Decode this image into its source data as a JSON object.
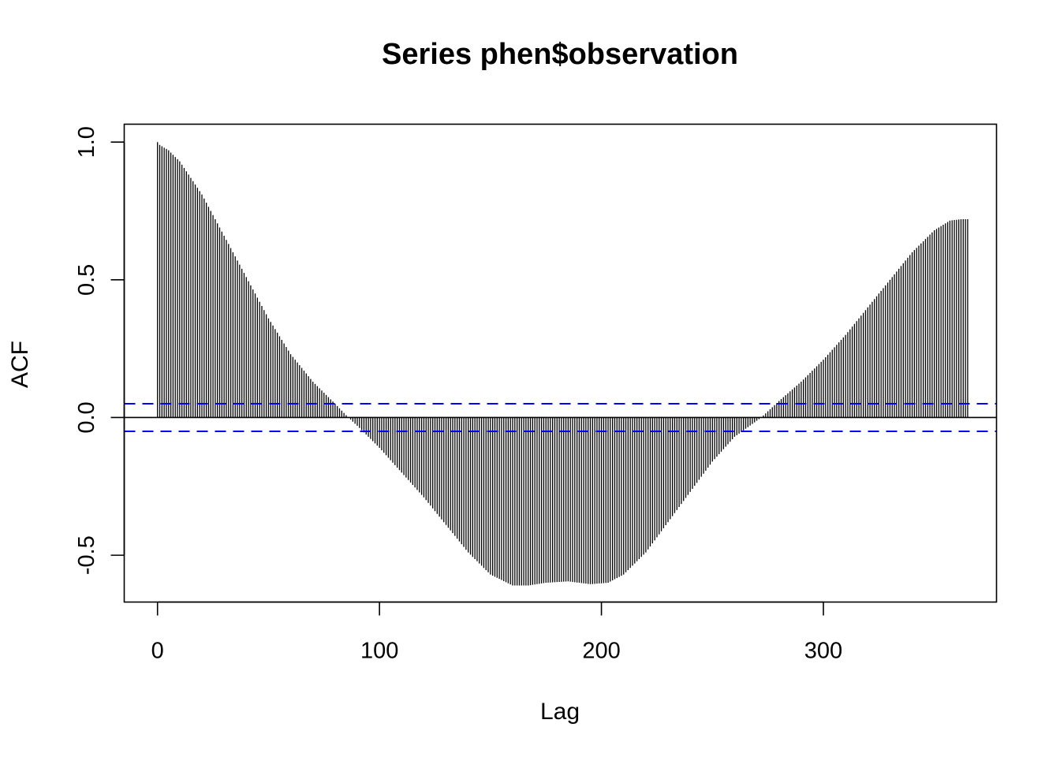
{
  "chart_data": {
    "type": "bar",
    "title": "Series  phen$observation",
    "xlabel": "Lag",
    "ylabel": "ACF",
    "xlim": [
      -15,
      378
    ],
    "ylim": [
      -0.67,
      1.065
    ],
    "x_ticks": [
      0,
      100,
      200,
      300
    ],
    "y_ticks": [
      -0.5,
      0.0,
      0.5,
      1.0
    ],
    "y_tick_labels": [
      "-0.5",
      "0.0",
      "0.5",
      "1.0"
    ],
    "confidence_band": {
      "upper": 0.05,
      "lower": -0.05,
      "color": "#0000ff",
      "style": "dashed"
    },
    "zero_line": true,
    "bar_color": "#000000",
    "lags": {
      "start": 0,
      "end": 365,
      "step": 1
    },
    "acf_profile": {
      "lag": [
        0,
        1,
        5,
        10,
        20,
        30,
        40,
        50,
        60,
        70,
        80,
        86,
        90,
        100,
        110,
        120,
        130,
        140,
        150,
        160,
        167,
        175,
        185,
        195,
        203,
        210,
        220,
        230,
        240,
        250,
        260,
        272,
        280,
        290,
        300,
        310,
        320,
        330,
        340,
        350,
        357,
        362,
        365
      ],
      "acf": [
        1.0,
        0.99,
        0.97,
        0.93,
        0.81,
        0.66,
        0.51,
        0.36,
        0.23,
        0.13,
        0.05,
        0.0,
        -0.03,
        -0.11,
        -0.2,
        -0.29,
        -0.39,
        -0.49,
        -0.57,
        -0.61,
        -0.61,
        -0.6,
        -0.595,
        -0.605,
        -0.6,
        -0.57,
        -0.49,
        -0.38,
        -0.27,
        -0.16,
        -0.07,
        0.0,
        0.06,
        0.13,
        0.21,
        0.3,
        0.4,
        0.5,
        0.6,
        0.68,
        0.715,
        0.72,
        0.72
      ]
    }
  }
}
